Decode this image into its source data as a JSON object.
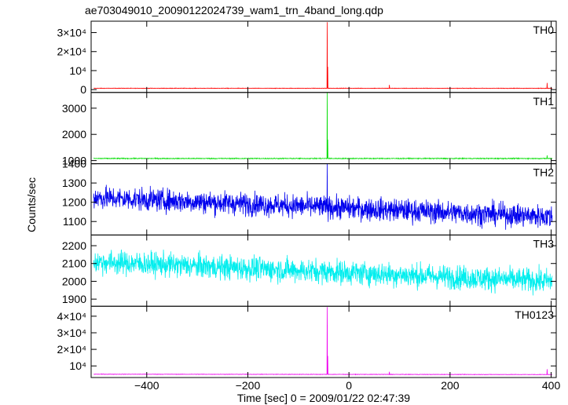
{
  "chart_data": {
    "type": "line",
    "title": "ae703049010_20090122024739_wam1_trn_4band_long.qdp",
    "xlabel": "Time [sec] 0 = 2009/01/22 02:47:39",
    "ylabel": "Counts/sec",
    "xlim": [
      -510,
      410
    ],
    "xticks": [
      -400,
      -200,
      0,
      200,
      400
    ],
    "panels": [
      {
        "name": "TH0",
        "color": "#ff0000",
        "ylim": [
          -1500,
          36000
        ],
        "yticks": [
          {
            "value": 0,
            "label": "0"
          },
          {
            "value": 10000,
            "label": "10⁴"
          },
          {
            "value": 20000,
            "label": "2×10⁴"
          },
          {
            "value": 30000,
            "label": "3×10⁴"
          }
        ],
        "baseline": 700,
        "noise": 90,
        "trend": 0,
        "spikes": [
          [
            -43,
            35500
          ],
          [
            -42,
            12000
          ],
          [
            80,
            2500
          ],
          [
            392,
            3500
          ]
        ]
      },
      {
        "name": "TH1",
        "color": "#00dd00",
        "ylim": [
          880,
          3600
        ],
        "yticks": [
          {
            "value": 1000,
            "label": "1000"
          },
          {
            "value": 2000,
            "label": "2000"
          },
          {
            "value": 3000,
            "label": "3000"
          }
        ],
        "baseline": 1080,
        "noise": 12,
        "trend": 0,
        "spikes": [
          [
            -43,
            3600
          ],
          [
            -42,
            1800
          ],
          [
            392,
            1200
          ]
        ]
      },
      {
        "name": "TH2",
        "color": "#0000ee",
        "ylim": [
          1030,
          1400
        ],
        "yticks": [
          {
            "value": 1100,
            "label": "1100"
          },
          {
            "value": 1200,
            "label": "1200"
          },
          {
            "value": 1300,
            "label": "1300"
          },
          {
            "value": 1400,
            "label": "1400"
          }
        ],
        "baseline": 1225,
        "noise": 42,
        "trend": -100,
        "spikes": [
          [
            -43,
            1400
          ]
        ]
      },
      {
        "name": "TH3",
        "color": "#00eeee",
        "ylim": [
          1860,
          2260
        ],
        "yticks": [
          {
            "value": 1900,
            "label": "1900"
          },
          {
            "value": 2000,
            "label": "2000"
          },
          {
            "value": 2100,
            "label": "2100"
          },
          {
            "value": 2200,
            "label": "2200"
          }
        ],
        "baseline": 2110,
        "noise": 48,
        "trend": -110,
        "spikes": []
      },
      {
        "name": "TH0123",
        "color": "#ee00ee",
        "ylim": [
          3000,
          46000
        ],
        "yticks": [
          {
            "value": 10000,
            "label": "10⁴"
          },
          {
            "value": 20000,
            "label": "2×10⁴"
          },
          {
            "value": 30000,
            "label": "3×10⁴"
          },
          {
            "value": 40000,
            "label": "4×10⁴"
          }
        ],
        "baseline": 5000,
        "noise": 100,
        "trend": -200,
        "spikes": [
          [
            -43,
            45500
          ],
          [
            -42,
            16000
          ],
          [
            80,
            6500
          ],
          [
            392,
            8000
          ]
        ]
      }
    ]
  }
}
